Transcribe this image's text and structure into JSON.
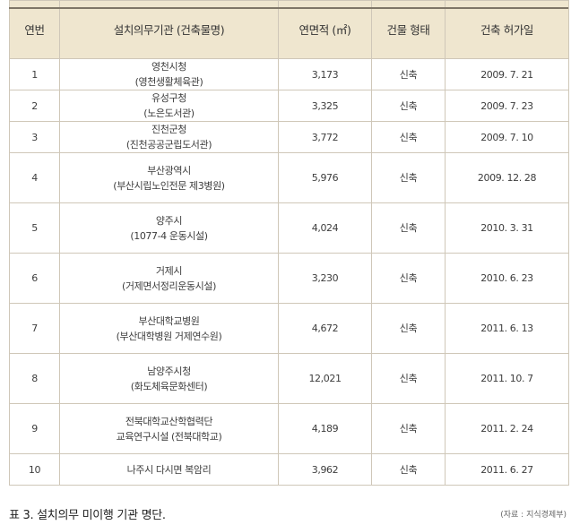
{
  "table": {
    "headers": {
      "no": "연번",
      "institution_line1": "설치의무기관",
      "institution_line2": "(건축물명)",
      "area_line1": "연면적",
      "area_line2": "(㎡)",
      "type_line1": "건물",
      "type_line2": "형태",
      "date_line1": "건축",
      "date_line2": "허가일"
    },
    "rows": [
      {
        "no": "1",
        "name": "영천시청",
        "sub": "(영천생활체육관)",
        "area": "3,173",
        "type": "신축",
        "date": "2009. 7. 21"
      },
      {
        "no": "2",
        "name": "유성구청",
        "sub": "(노은도서관)",
        "area": "3,325",
        "type": "신축",
        "date": "2009. 7. 23"
      },
      {
        "no": "3",
        "name": "진천군청",
        "sub": "(진천공공군립도서관)",
        "area": "3,772",
        "type": "신축",
        "date": "2009. 7. 10"
      },
      {
        "no": "4",
        "name": "부산광역시",
        "sub": "(부산시립노인전문 제3병원)",
        "area": "5,976",
        "type": "신축",
        "date": "2009. 12. 28"
      },
      {
        "no": "5",
        "name": "양주시",
        "sub": "(1077-4 운동시설)",
        "area": "4,024",
        "type": "신축",
        "date": "2010. 3. 31"
      },
      {
        "no": "6",
        "name": "거제시",
        "sub": "(거제면서정리운동시설)",
        "area": "3,230",
        "type": "신축",
        "date": "2010. 6. 23"
      },
      {
        "no": "7",
        "name": "부산대학교병원",
        "sub": "(부산대학병원  거제연수원)",
        "area": "4,672",
        "type": "신축",
        "date": "2011. 6. 13"
      },
      {
        "no": "8",
        "name": "남양주시청",
        "sub": "(화도체육문화센터)",
        "area": "12,021",
        "type": "신축",
        "date": "2011. 10. 7"
      },
      {
        "no": "9",
        "name": "전북대학교산학협력단",
        "sub": "교육연구시설 (전북대학교)",
        "area": "4,189",
        "type": "신축",
        "date": "2011. 2. 24"
      },
      {
        "no": "10",
        "name": "나주시 다시면 복암리",
        "sub": "",
        "area": "3,962",
        "type": "신축",
        "date": "2011. 6. 27"
      }
    ]
  },
  "caption": "표 3. 설치의무 미이행 기관 명단.",
  "source": "(자료 : 지식경제부)",
  "colors": {
    "header_bg": "#efe6cf",
    "border": "#cfc7b8"
  }
}
